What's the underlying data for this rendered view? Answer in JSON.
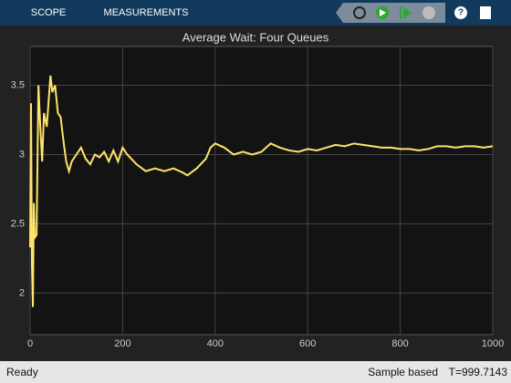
{
  "toolbar": {
    "tabs": [
      "SCOPE",
      "MEASUREMENTS"
    ]
  },
  "chart_data": {
    "type": "line",
    "title": "Average Wait: Four Queues",
    "x": [
      0,
      2,
      4,
      6,
      8,
      10,
      14,
      18,
      22,
      26,
      30,
      36,
      44,
      48,
      54,
      60,
      66,
      72,
      78,
      84,
      90,
      100,
      110,
      120,
      130,
      140,
      150,
      160,
      170,
      180,
      190,
      200,
      210,
      230,
      250,
      270,
      290,
      310,
      330,
      340,
      360,
      380,
      390,
      400,
      420,
      440,
      460,
      480,
      500,
      520,
      540,
      560,
      580,
      600,
      620,
      640,
      660,
      680,
      700,
      720,
      740,
      760,
      780,
      800,
      820,
      840,
      860,
      880,
      900,
      920,
      940,
      960,
      980,
      1000
    ],
    "series": [
      {
        "name": "Average Wait",
        "color": "#ffe46b",
        "values": [
          2.33,
          3.37,
          2.2,
          1.9,
          2.65,
          2.4,
          2.42,
          3.5,
          3.2,
          2.95,
          3.3,
          3.2,
          3.57,
          3.45,
          3.5,
          3.3,
          3.27,
          3.1,
          2.95,
          2.88,
          2.95,
          3.0,
          3.05,
          2.97,
          2.93,
          3.0,
          2.98,
          3.02,
          2.95,
          3.03,
          2.95,
          3.05,
          3.0,
          2.93,
          2.88,
          2.9,
          2.88,
          2.9,
          2.87,
          2.85,
          2.9,
          2.97,
          3.05,
          3.08,
          3.05,
          3.0,
          3.02,
          3.0,
          3.02,
          3.08,
          3.05,
          3.03,
          3.02,
          3.04,
          3.03,
          3.05,
          3.07,
          3.06,
          3.08,
          3.07,
          3.06,
          3.05,
          3.05,
          3.04,
          3.04,
          3.03,
          3.04,
          3.06,
          3.06,
          3.05,
          3.06,
          3.06,
          3.05,
          3.06
        ]
      }
    ],
    "xlim": [
      0,
      1000
    ],
    "xticks": [
      0,
      200,
      400,
      600,
      800,
      1000
    ],
    "ylim": [
      1.7,
      3.78
    ],
    "yticks": [
      2,
      2.5,
      3,
      3.5
    ],
    "grid": true
  },
  "status": {
    "left": "Ready",
    "mode": "Sample based",
    "time": "T=999.7143"
  }
}
